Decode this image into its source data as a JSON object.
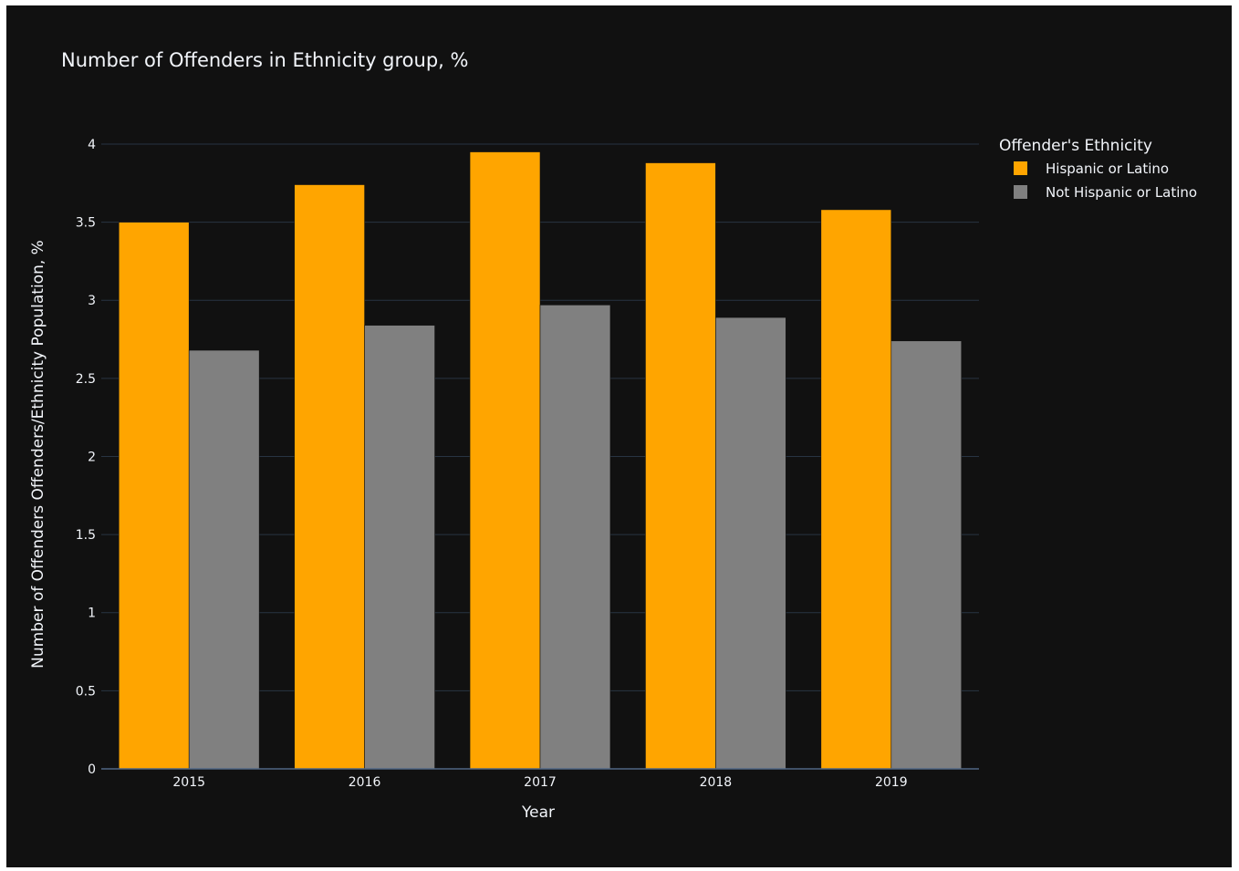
{
  "chart_data": {
    "type": "bar",
    "title": "Number of Offenders in Ethnicity group, %",
    "xlabel": "Year",
    "ylabel": "Number of Offenders Offenders/Ethnicity Population, %",
    "categories": [
      "2015",
      "2016",
      "2017",
      "2018",
      "2019"
    ],
    "series": [
      {
        "name": "Hispanic or Latino",
        "color": "#FFA500",
        "values": [
          3.5,
          3.74,
          3.95,
          3.88,
          3.58
        ]
      },
      {
        "name": "Not Hispanic or Latino",
        "color": "#808080",
        "values": [
          2.68,
          2.84,
          2.97,
          2.89,
          2.74
        ]
      }
    ],
    "ylim": [
      0,
      4.14
    ],
    "yticks": [
      0,
      0.5,
      1,
      1.5,
      2,
      2.5,
      3,
      3.5,
      4
    ],
    "ytick_labels": [
      "0",
      "0.5",
      "1",
      "1.5",
      "2",
      "2.5",
      "3",
      "3.5",
      "4"
    ],
    "grid": true,
    "legend": {
      "title": "Offender's Ethnicity",
      "placement": "top-right"
    },
    "background": "#111111",
    "text_color": "#f2f5fa",
    "grid_color": "#283442"
  }
}
